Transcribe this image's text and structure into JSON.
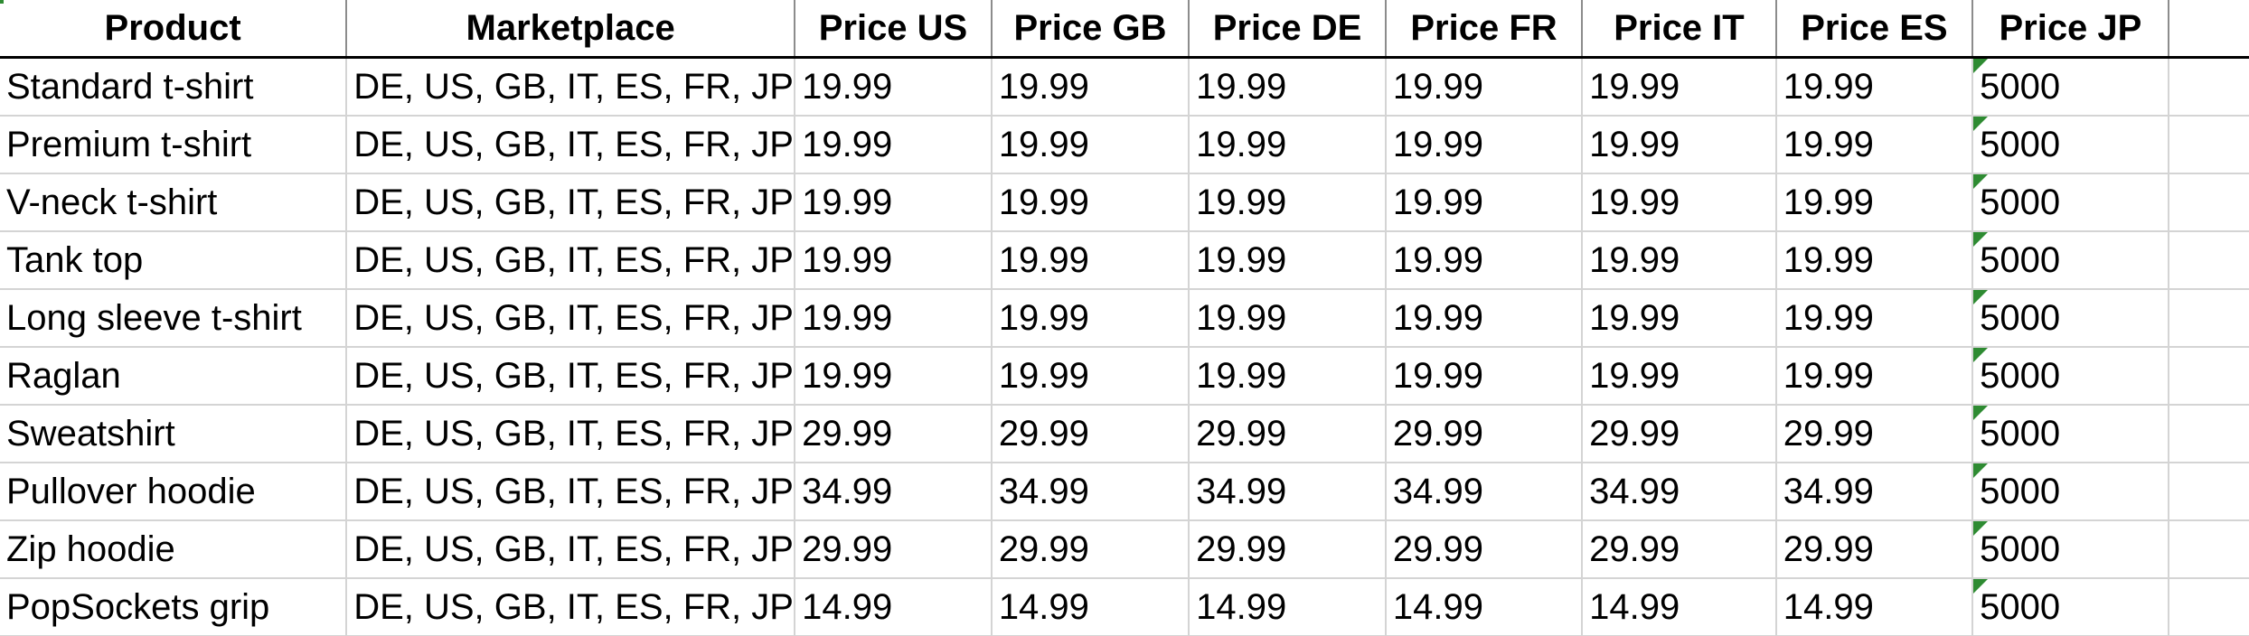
{
  "spreadsheet": {
    "headers": [
      "Product",
      "Marketplace",
      "Price US",
      "Price GB",
      "Price DE",
      "Price FR",
      "Price IT",
      "Price ES",
      "Price JP"
    ],
    "rows": [
      [
        "Standard t-shirt",
        "DE, US, GB, IT, ES, FR, JP",
        "19.99",
        "19.99",
        "19.99",
        "19.99",
        "19.99",
        "19.99",
        "5000"
      ],
      [
        "Premium t-shirt",
        "DE, US, GB, IT, ES, FR, JP",
        "19.99",
        "19.99",
        "19.99",
        "19.99",
        "19.99",
        "19.99",
        "5000"
      ],
      [
        "V-neck t-shirt",
        "DE, US, GB, IT, ES, FR, JP",
        "19.99",
        "19.99",
        "19.99",
        "19.99",
        "19.99",
        "19.99",
        "5000"
      ],
      [
        "Tank top",
        "DE, US, GB, IT, ES, FR, JP",
        "19.99",
        "19.99",
        "19.99",
        "19.99",
        "19.99",
        "19.99",
        "5000"
      ],
      [
        "Long sleeve t-shirt",
        "DE, US, GB, IT, ES, FR, JP",
        "19.99",
        "19.99",
        "19.99",
        "19.99",
        "19.99",
        "19.99",
        "5000"
      ],
      [
        "Raglan",
        "DE, US, GB, IT, ES, FR, JP",
        "19.99",
        "19.99",
        "19.99",
        "19.99",
        "19.99",
        "19.99",
        "5000"
      ],
      [
        "Sweatshirt",
        "DE, US, GB, IT, ES, FR, JP",
        "29.99",
        "29.99",
        "29.99",
        "29.99",
        "29.99",
        "29.99",
        "5000"
      ],
      [
        "Pullover hoodie",
        "DE, US, GB, IT, ES, FR, JP",
        "34.99",
        "34.99",
        "34.99",
        "34.99",
        "34.99",
        "34.99",
        "5000"
      ],
      [
        "Zip hoodie",
        "DE, US, GB, IT, ES, FR, JP",
        "29.99",
        "29.99",
        "29.99",
        "29.99",
        "29.99",
        "29.99",
        "5000"
      ],
      [
        "PopSockets grip",
        "DE, US, GB, IT, ES, FR, JP",
        "14.99",
        "14.99",
        "14.99",
        "14.99",
        "14.99",
        "14.99",
        "5000"
      ]
    ],
    "jp_cell_indicator_icon": "number-stored-as-text-triangle",
    "indicator_color": "#2e8b32",
    "header_border_color": "#000000",
    "gridline_color": "#d4d4d4"
  }
}
